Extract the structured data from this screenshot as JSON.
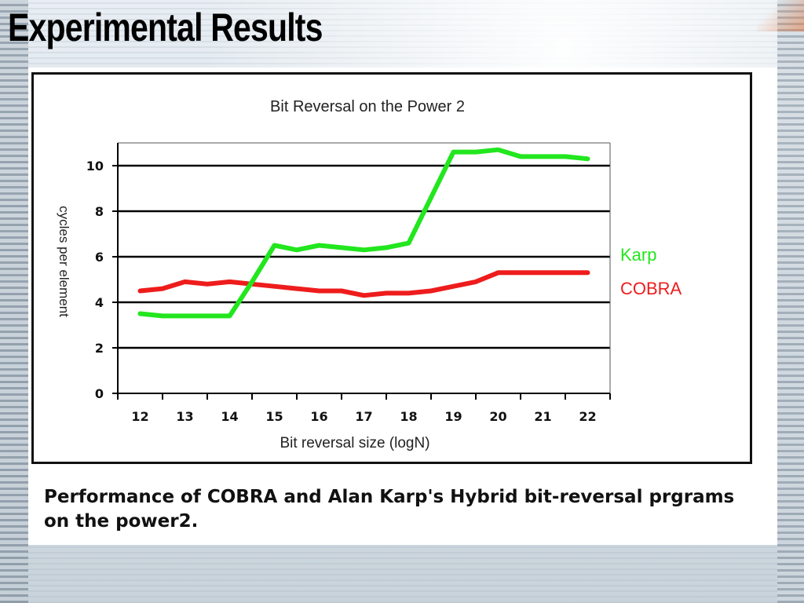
{
  "slide": {
    "title": "Experimental Results",
    "caption": "Performance of COBRA and Alan Karp's Hybrid bit-reversal prgrams on the power2."
  },
  "chart_data": {
    "type": "line",
    "title": "Bit Reversal on the Power 2",
    "xlabel": "Bit reversal size (logN)",
    "ylabel": "cycles per element",
    "x": [
      12,
      12.5,
      13,
      13.5,
      14,
      14.5,
      15,
      15.5,
      16,
      16.5,
      17,
      17.5,
      18,
      18.5,
      19,
      19.5,
      20,
      20.5,
      21,
      21.5,
      22
    ],
    "xlim": [
      11.5,
      22.5
    ],
    "ylim": [
      0,
      11
    ],
    "xticks": [
      12,
      13,
      14,
      15,
      16,
      17,
      18,
      19,
      20,
      21,
      22
    ],
    "yticks": [
      0,
      2,
      4,
      6,
      8,
      10
    ],
    "grid": "horizontal",
    "legend_position": "right",
    "series": [
      {
        "name": "Karp",
        "color": "#22e61e",
        "values": [
          3.5,
          3.4,
          3.4,
          3.4,
          3.4,
          4.9,
          6.5,
          6.3,
          6.5,
          6.4,
          6.3,
          6.4,
          6.6,
          8.6,
          10.6,
          10.6,
          10.7,
          10.4,
          10.4,
          10.4,
          10.3
        ]
      },
      {
        "name": "COBRA",
        "color": "#ee1c1c",
        "values": [
          4.5,
          4.6,
          4.9,
          4.8,
          4.9,
          4.8,
          4.7,
          4.6,
          4.5,
          4.5,
          4.3,
          4.4,
          4.4,
          4.5,
          4.7,
          4.9,
          5.3,
          5.3,
          5.3,
          5.3,
          5.3
        ]
      }
    ]
  }
}
